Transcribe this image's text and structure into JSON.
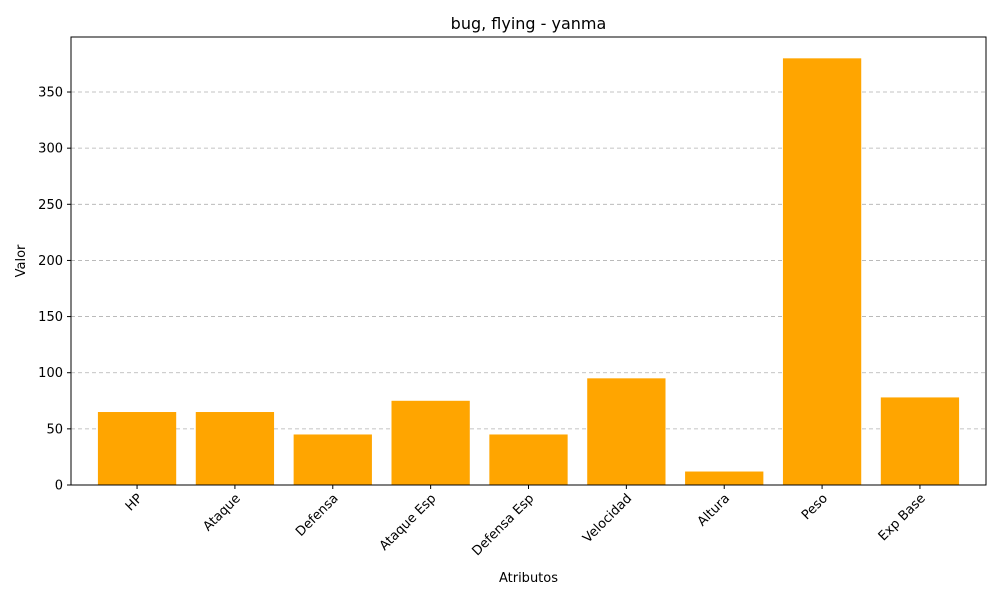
{
  "chart_data": {
    "type": "bar",
    "title": "bug, flying - yanma",
    "xlabel": "Atributos",
    "ylabel": "Valor",
    "categories": [
      "HP",
      "Ataque",
      "Defensa",
      "Ataque Esp",
      "Defensa Esp",
      "Velocidad",
      "Altura",
      "Peso",
      "Exp Base"
    ],
    "values": [
      65,
      65,
      45,
      75,
      45,
      95,
      12,
      380,
      78
    ],
    "ylim": [
      0,
      399
    ],
    "yticks": [
      0,
      50,
      100,
      150,
      200,
      250,
      300,
      350
    ],
    "bar_color": "#FFA500",
    "grid": "horizontal dashed",
    "legend": "none"
  }
}
